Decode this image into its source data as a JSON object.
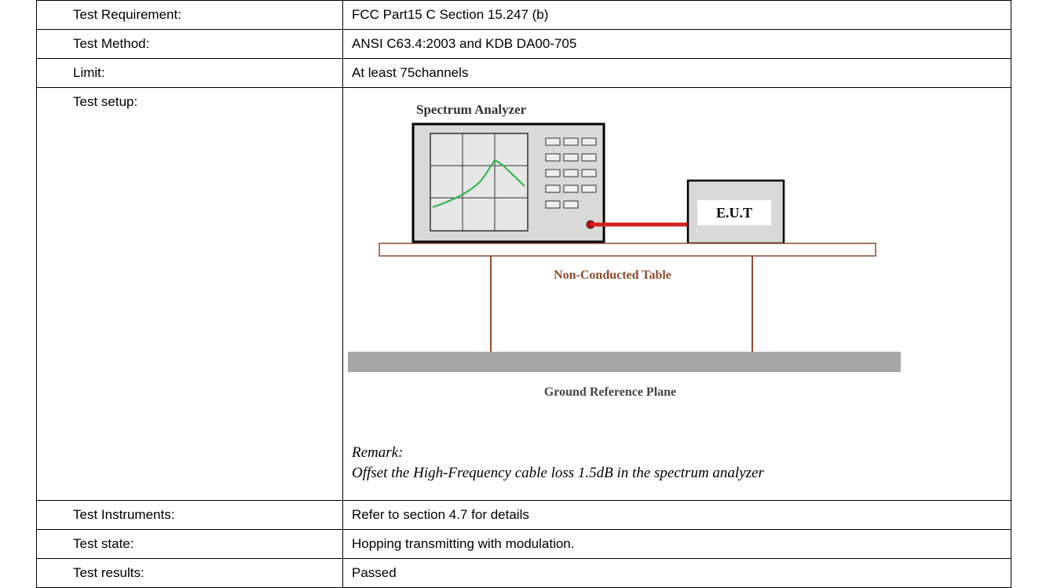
{
  "table": {
    "rows": [
      {
        "label": "Test Requirement:",
        "value": "FCC Part15 C Section 15.247 (b)"
      },
      {
        "label": "Test Method:",
        "value": "ANSI C63.4:2003 and KDB DA00-705"
      },
      {
        "label": "Limit:",
        "value": "At least 75channels"
      },
      {
        "label": "Test setup:",
        "diagram": {
          "analyzer": "Spectrum Analyzer",
          "eut": "E.U.T",
          "table": "Non-Conducted Table",
          "ground": "Ground Reference Plane"
        },
        "remark_heading": "Remark:",
        "remark": "Offset the High-Frequency cable loss 1.5dB in the spectrum analyzer"
      },
      {
        "label": "Test Instruments:",
        "value": "Refer to section 4.7 for details"
      },
      {
        "label": "Test state:",
        "value": "Hopping transmitting with modulation."
      },
      {
        "label": "Test results:",
        "value": "Passed"
      }
    ]
  }
}
